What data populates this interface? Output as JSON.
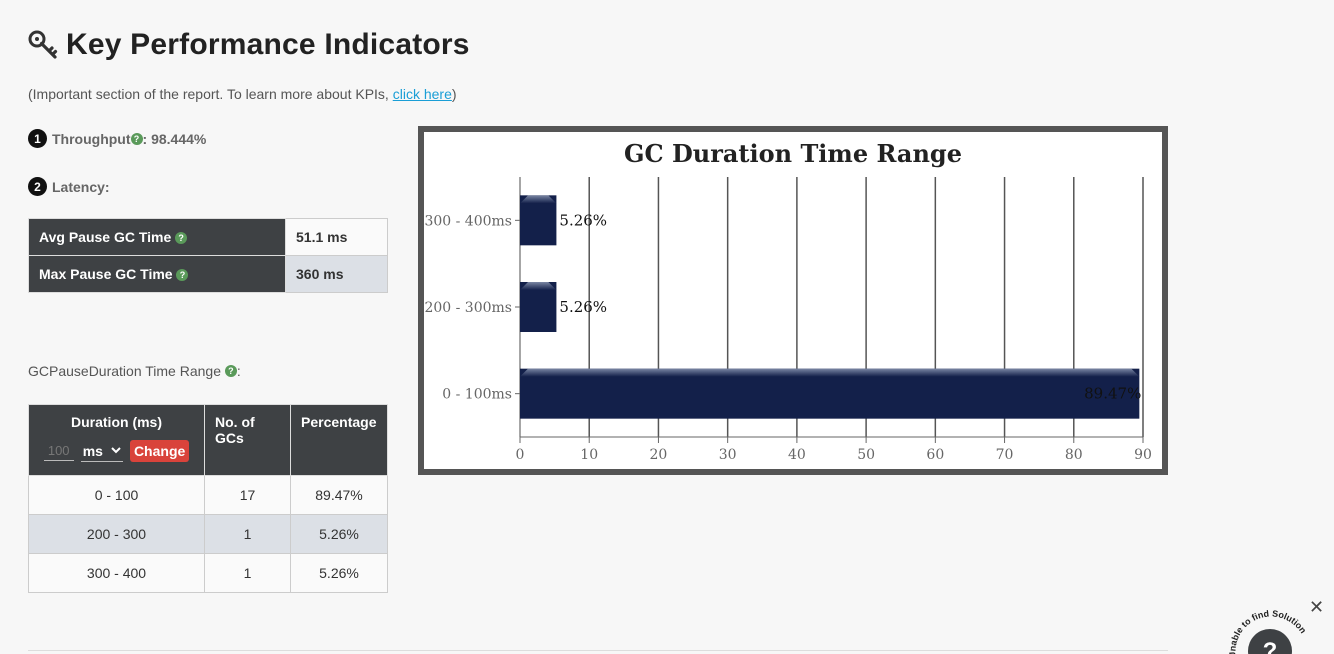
{
  "header": {
    "title": "Key Performance Indicators",
    "icon": "key-icon"
  },
  "intro": {
    "prefix": "(Important section of the report. To learn more about KPIs, ",
    "link": "click here",
    "suffix": ")"
  },
  "throughput": {
    "number": "1",
    "label": "Throughput",
    "value": " : 98.444%"
  },
  "latency": {
    "number": "2",
    "label": "Latency:"
  },
  "pause_table": [
    {
      "label": "Avg Pause GC Time",
      "value": "51.1 ms"
    },
    {
      "label": "Max Pause GC Time",
      "value": "360 ms"
    }
  ],
  "range_section": {
    "label": "GCPauseDuration Time Range",
    "suffix": ":"
  },
  "range_table": {
    "headers": {
      "duration": "Duration (ms)",
      "count": "No. of GCs",
      "percentage": "Percentage"
    },
    "input_placeholder": "100",
    "unit": "ms",
    "change_label": "Change",
    "rows": [
      {
        "range": "0 - 100",
        "count": "17",
        "pct": "89.47%"
      },
      {
        "range": "200 - 300",
        "count": "1",
        "pct": "5.26%"
      },
      {
        "range": "300 - 400",
        "count": "1",
        "pct": "5.26%"
      }
    ]
  },
  "chart_data": {
    "type": "bar",
    "orientation": "horizontal",
    "title": "GC Duration Time Range",
    "categories": [
      "0 - 100ms",
      "200 - 300ms",
      "300 - 400ms"
    ],
    "values": [
      89.47,
      5.26,
      5.26
    ],
    "data_labels": [
      "89.47%",
      "5.26%",
      "5.26%"
    ],
    "xlim": [
      0,
      90
    ],
    "xticks": [
      0,
      10,
      20,
      30,
      40,
      50,
      60,
      70,
      80,
      90
    ],
    "grid": true,
    "bar_color": "#13204a"
  },
  "widgets": {
    "close_label": "✕",
    "help_text": "Unable to find Solution",
    "help_glyph": "?"
  }
}
